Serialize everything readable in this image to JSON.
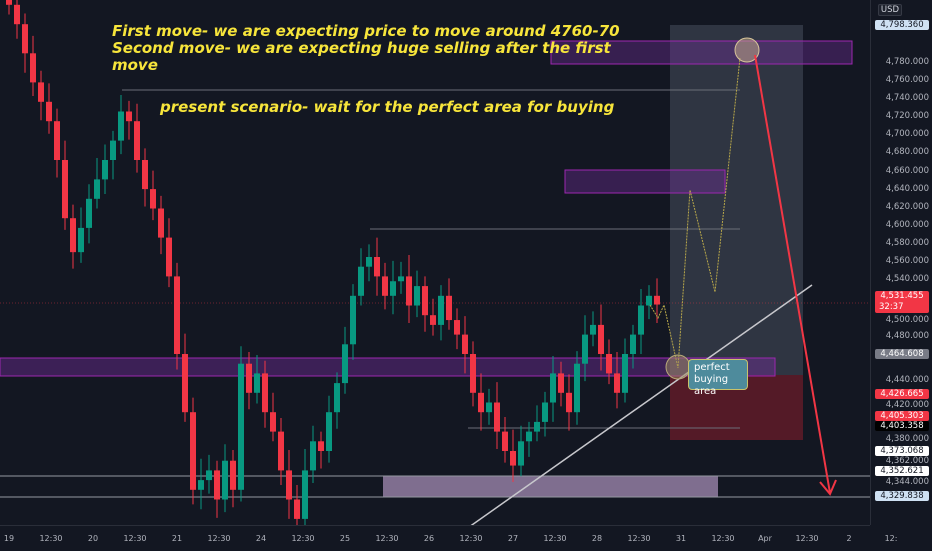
{
  "currency": "USD",
  "annotations": {
    "line1": "First move- we are expecting price to move around 4760-70",
    "line2": "Second move- we are expecting huge selling after the first",
    "line3": "move",
    "scenario": "present scenario- wait for the perfect area for buying",
    "buy_label_1": "perfect",
    "buy_label_2": "buying area"
  },
  "price_axis": {
    "ticks": [
      "4,780.000",
      "4,760.000",
      "4,740.000",
      "4,720.000",
      "4,700.000",
      "4,680.000",
      "4,660.000",
      "4,640.000",
      "4,620.000",
      "4,600.000",
      "4,580.000",
      "4,560.000",
      "4,540.000",
      "4,500.000",
      "4,480.000",
      "4,440.000",
      "4,420.000",
      "4,380.000",
      "4,362.000",
      "4,344.000"
    ],
    "badges": {
      "top": "4,798.360",
      "current": "4,531.455",
      "countdown": "32:37",
      "gray": "4,464.608",
      "red1": "4,426.665",
      "red2": "4,405.303",
      "dark": "4,403.358",
      "white1": "4,373.068",
      "white2": "4,352.621",
      "bottom": "4,329.838"
    }
  },
  "time_axis": [
    "19",
    "12:30",
    "20",
    "12:30",
    "21",
    "12:30",
    "24",
    "12:30",
    "25",
    "12:30",
    "26",
    "12:30",
    "27",
    "12:30",
    "28",
    "12:30",
    "31",
    "12:30",
    "Apr",
    "12:30",
    "2",
    "12:"
  ],
  "colors": {
    "bg": "#131722",
    "up": "#089981",
    "down": "#f23645",
    "annotation": "#f7e53b",
    "zone": "#9c27b0"
  },
  "chart_data": {
    "type": "candlestick",
    "closes": [
      4840,
      4820,
      4790,
      4760,
      4740,
      4720,
      4680,
      4620,
      4585,
      4610,
      4640,
      4660,
      4680,
      4700,
      4730,
      4720,
      4680,
      4650,
      4630,
      4600,
      4560,
      4480,
      4420,
      4340,
      4350,
      4360,
      4330,
      4370,
      4340,
      4470,
      4440,
      4460,
      4420,
      4400,
      4360,
      4330,
      4310,
      4360,
      4390,
      4380,
      4420,
      4450,
      4490,
      4540,
      4570,
      4580,
      4560,
      4540,
      4555,
      4560,
      4530,
      4550,
      4520,
      4510,
      4540,
      4515,
      4500,
      4480,
      4440,
      4420,
      4430,
      4400,
      4380,
      4365,
      4390,
      4400,
      4410,
      4430,
      4460,
      4440,
      4420,
      4470,
      4500,
      4510,
      4480,
      4460,
      4440,
      4480,
      4500,
      4530,
      4540,
      4531
    ],
    "projection_targets": [
      4640,
      4550,
      4770
    ]
  }
}
